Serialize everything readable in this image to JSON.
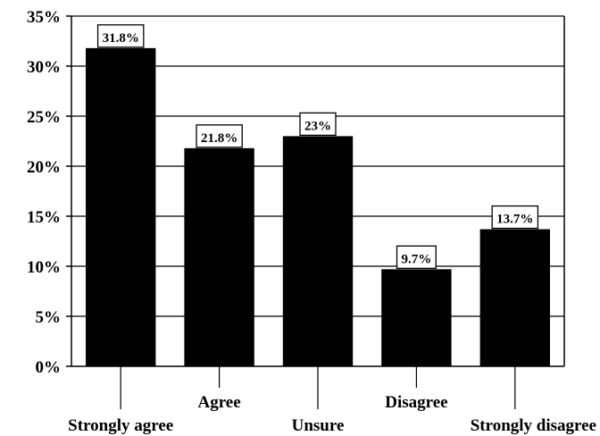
{
  "chart_data": {
    "type": "bar",
    "categories": [
      "Strongly agree",
      "Agree",
      "Unsure",
      "Disagree",
      "Strongly disagree"
    ],
    "values": [
      31.8,
      21.8,
      23,
      9.7,
      13.7
    ],
    "data_labels": [
      "31.8%",
      "21.8%",
      "23%",
      "9.7%",
      "13.7%"
    ],
    "title": "",
    "xlabel": "",
    "ylabel": "",
    "ylim": [
      0,
      35
    ],
    "y_ticks": [
      0,
      5,
      10,
      15,
      20,
      25,
      30,
      35
    ],
    "y_tick_labels": [
      "0%",
      "5%",
      "10%",
      "15%",
      "20%",
      "25%",
      "30%",
      "35%"
    ],
    "grid": true,
    "bar_color": "#000000"
  }
}
